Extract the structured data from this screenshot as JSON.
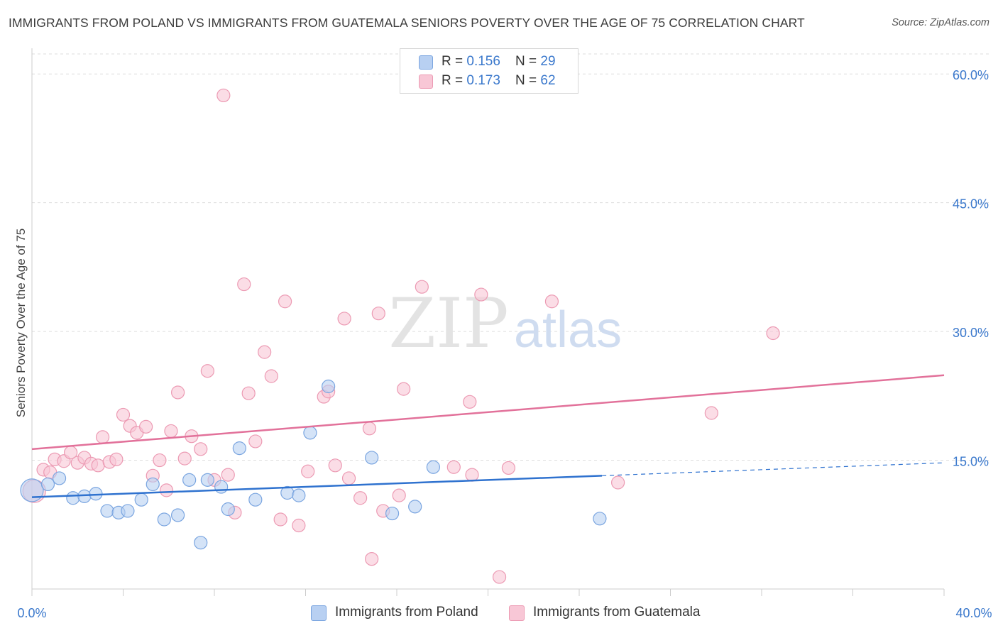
{
  "header": {
    "title": "IMMIGRANTS FROM POLAND VS IMMIGRANTS FROM GUATEMALA SENIORS POVERTY OVER THE AGE OF 75 CORRELATION CHART",
    "source": "Source: ZipAtlas.com"
  },
  "watermark": {
    "zip": "ZIP",
    "atlas": "atlas"
  },
  "legend": {
    "rows": [
      {
        "r_label": "R = ",
        "r_value": "0.156",
        "n_label": "N = ",
        "n_value": "29"
      },
      {
        "r_label": "R = ",
        "r_value": "0.173",
        "n_label": "N = ",
        "n_value": "62"
      }
    ]
  },
  "bottom_legend": {
    "items": [
      {
        "label": "Immigrants from Poland"
      },
      {
        "label": "Immigrants from Guatemala"
      }
    ]
  },
  "colors": {
    "poland_fill": "#b8d0f2",
    "poland_stroke": "#7aa5e0",
    "poland_line": "#2f72cf",
    "guatemala_fill": "#f8c7d6",
    "guatemala_stroke": "#ec9ab3",
    "guatemala_line": "#e2719a",
    "tick_label": "#3a78cc",
    "grid": "#dddddd"
  },
  "chart_data": {
    "type": "scatter",
    "title": "IMMIGRANTS FROM POLAND VS IMMIGRANTS FROM GUATEMALA SENIORS POVERTY OVER THE AGE OF 75 CORRELATION CHART",
    "xlabel": "",
    "ylabel": "Seniors Poverty Over the Age of 75",
    "xlim": [
      0,
      40
    ],
    "ylim": [
      0,
      62
    ],
    "x_tick_labels": [
      "0.0%",
      "40.0%"
    ],
    "y_ticks": [
      15,
      30,
      45,
      60
    ],
    "y_tick_labels": [
      "15.0%",
      "30.0%",
      "45.0%",
      "60.0%"
    ],
    "grid": true,
    "legend_position": "top-center",
    "series": [
      {
        "name": "Immigrants from Poland",
        "r": 0.156,
        "n": 29,
        "trend": {
          "x": [
            0,
            25
          ],
          "y": [
            10.7,
            13.2
          ],
          "dashed_to": [
            40,
            14.7
          ]
        },
        "points": [
          [
            0.0,
            11.5
          ],
          [
            0.7,
            12.2
          ],
          [
            1.2,
            12.9
          ],
          [
            1.8,
            10.6
          ],
          [
            2.3,
            10.8
          ],
          [
            2.8,
            11.1
          ],
          [
            3.3,
            9.1
          ],
          [
            3.8,
            8.9
          ],
          [
            4.2,
            9.1
          ],
          [
            4.8,
            10.4
          ],
          [
            5.3,
            12.2
          ],
          [
            5.8,
            8.1
          ],
          [
            6.4,
            8.6
          ],
          [
            6.9,
            12.7
          ],
          [
            7.4,
            5.4
          ],
          [
            7.7,
            12.7
          ],
          [
            8.3,
            11.9
          ],
          [
            8.6,
            9.3
          ],
          [
            9.1,
            16.4
          ],
          [
            9.8,
            10.4
          ],
          [
            11.2,
            11.2
          ],
          [
            11.7,
            10.9
          ],
          [
            12.2,
            18.2
          ],
          [
            13.0,
            23.6
          ],
          [
            14.9,
            15.3
          ],
          [
            15.8,
            8.8
          ],
          [
            16.8,
            9.6
          ],
          [
            17.6,
            14.2
          ],
          [
            24.9,
            8.2
          ]
        ]
      },
      {
        "name": "Immigrants from Guatemala",
        "r": 0.173,
        "n": 62,
        "trend": {
          "x": [
            0,
            40
          ],
          "y": [
            16.3,
            24.9
          ]
        },
        "points": [
          [
            0.1,
            11.4
          ],
          [
            0.5,
            13.9
          ],
          [
            0.8,
            13.6
          ],
          [
            1.0,
            15.1
          ],
          [
            1.4,
            14.9
          ],
          [
            1.7,
            15.9
          ],
          [
            2.0,
            14.7
          ],
          [
            2.3,
            15.3
          ],
          [
            2.6,
            14.6
          ],
          [
            2.9,
            14.4
          ],
          [
            3.1,
            17.7
          ],
          [
            3.4,
            14.8
          ],
          [
            3.7,
            15.1
          ],
          [
            4.0,
            20.3
          ],
          [
            4.3,
            19.0
          ],
          [
            4.6,
            18.2
          ],
          [
            5.0,
            18.9
          ],
          [
            5.3,
            13.2
          ],
          [
            5.6,
            15.0
          ],
          [
            5.9,
            11.5
          ],
          [
            6.1,
            18.4
          ],
          [
            6.4,
            22.9
          ],
          [
            6.7,
            15.2
          ],
          [
            7.0,
            17.8
          ],
          [
            7.4,
            16.3
          ],
          [
            7.7,
            25.4
          ],
          [
            8.0,
            12.7
          ],
          [
            8.4,
            57.5
          ],
          [
            8.6,
            13.3
          ],
          [
            8.9,
            8.9
          ],
          [
            9.3,
            35.5
          ],
          [
            9.5,
            22.8
          ],
          [
            9.8,
            17.2
          ],
          [
            10.2,
            27.6
          ],
          [
            10.5,
            24.8
          ],
          [
            10.9,
            8.1
          ],
          [
            11.1,
            33.5
          ],
          [
            11.7,
            7.4
          ],
          [
            12.1,
            13.7
          ],
          [
            12.8,
            22.4
          ],
          [
            13.0,
            23.0
          ],
          [
            13.3,
            14.4
          ],
          [
            13.7,
            31.5
          ],
          [
            13.9,
            12.9
          ],
          [
            14.4,
            10.6
          ],
          [
            14.8,
            18.7
          ],
          [
            14.9,
            3.5
          ],
          [
            15.2,
            32.1
          ],
          [
            15.4,
            9.1
          ],
          [
            16.1,
            10.9
          ],
          [
            16.3,
            23.3
          ],
          [
            17.1,
            35.2
          ],
          [
            18.5,
            14.2
          ],
          [
            19.2,
            21.8
          ],
          [
            19.3,
            13.3
          ],
          [
            19.7,
            34.3
          ],
          [
            20.5,
            1.4
          ],
          [
            20.9,
            14.1
          ],
          [
            22.8,
            33.5
          ],
          [
            25.7,
            12.4
          ],
          [
            29.8,
            20.5
          ],
          [
            32.5,
            29.8
          ]
        ]
      }
    ]
  }
}
